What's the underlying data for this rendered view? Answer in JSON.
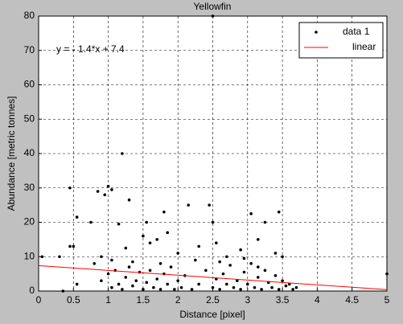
{
  "chart_data": {
    "type": "scatter",
    "title": "Yellowfin",
    "xlabel": "Distance [pixel]",
    "ylabel": "Abundance [metric tonnes]",
    "annotation": "y = - 1.4*x + 7.4",
    "xlim": [
      0,
      5
    ],
    "ylim": [
      0,
      80
    ],
    "xticks": [
      0,
      0.5,
      1,
      1.5,
      2,
      2.5,
      3,
      3.5,
      4,
      4.5,
      5
    ],
    "yticks": [
      0,
      10,
      20,
      30,
      40,
      50,
      60,
      70,
      80
    ],
    "grid": true,
    "legend": "top-right",
    "series": [
      {
        "name": "data 1",
        "color": "#000000",
        "x": [
          0.05,
          0.3,
          0.35,
          0.45,
          0.45,
          0.5,
          0.55,
          0.55,
          0.75,
          0.85,
          0.9,
          0.95,
          1.0,
          1.05,
          1.15,
          1.2,
          1.25,
          1.3,
          1.55,
          1.5,
          1.8,
          1.85,
          2.15,
          2.45,
          2.5,
          2.5,
          2.55,
          3.05,
          3.15,
          3.25,
          3.4,
          3.45,
          3.5,
          5.0,
          1.6,
          1.7,
          2.0,
          2.3,
          2.7,
          2.9,
          0.8,
          0.9,
          1.0,
          1.05,
          1.1,
          1.15,
          1.2,
          1.25,
          1.3,
          1.35,
          1.4,
          1.45,
          1.5,
          1.55,
          1.6,
          1.65,
          1.7,
          1.75,
          1.8,
          1.85,
          1.9,
          1.95,
          2.0,
          2.05,
          2.1,
          2.2,
          2.3,
          2.4,
          2.5,
          2.55,
          2.6,
          2.65,
          2.7,
          2.75,
          2.8,
          2.85,
          2.9,
          2.95,
          3.0,
          3.05,
          3.1,
          3.15,
          3.2,
          3.25,
          3.3,
          3.35,
          3.4,
          3.45,
          3.5,
          3.55,
          3.6,
          3.65,
          3.7,
          1.35,
          2.25,
          2.95,
          1.75,
          3.15,
          1.05,
          2.6
        ],
        "values": [
          10,
          10,
          0,
          30,
          13,
          13,
          21.5,
          2,
          20,
          29,
          10,
          28,
          30.5,
          29.5,
          19.5,
          40,
          12.5,
          26.5,
          20,
          16,
          23,
          17,
          25,
          25,
          80,
          20,
          14,
          22.5,
          15,
          20,
          11,
          23,
          10,
          5,
          14,
          15,
          11,
          13,
          10,
          12,
          8,
          3,
          5,
          1,
          6,
          2,
          0.5,
          4,
          7,
          1.5,
          3,
          5.5,
          0.5,
          2.5,
          6,
          1,
          3.5,
          0.5,
          5,
          2,
          7,
          0.5,
          3,
          1,
          4.5,
          0.5,
          2,
          6,
          1,
          3.5,
          0.5,
          5,
          2,
          7.5,
          1,
          3,
          0.5,
          5.5,
          2,
          8,
          1,
          4,
          0.5,
          6,
          2.5,
          1,
          4.5,
          0.5,
          3,
          1.5,
          2,
          0.5,
          1,
          8.5,
          9,
          9.5,
          8,
          7,
          9,
          8.5
        ]
      },
      {
        "name": "linear",
        "color": "#ff0000",
        "x": [
          0,
          5
        ],
        "values": [
          7.4,
          0.4
        ]
      }
    ]
  }
}
